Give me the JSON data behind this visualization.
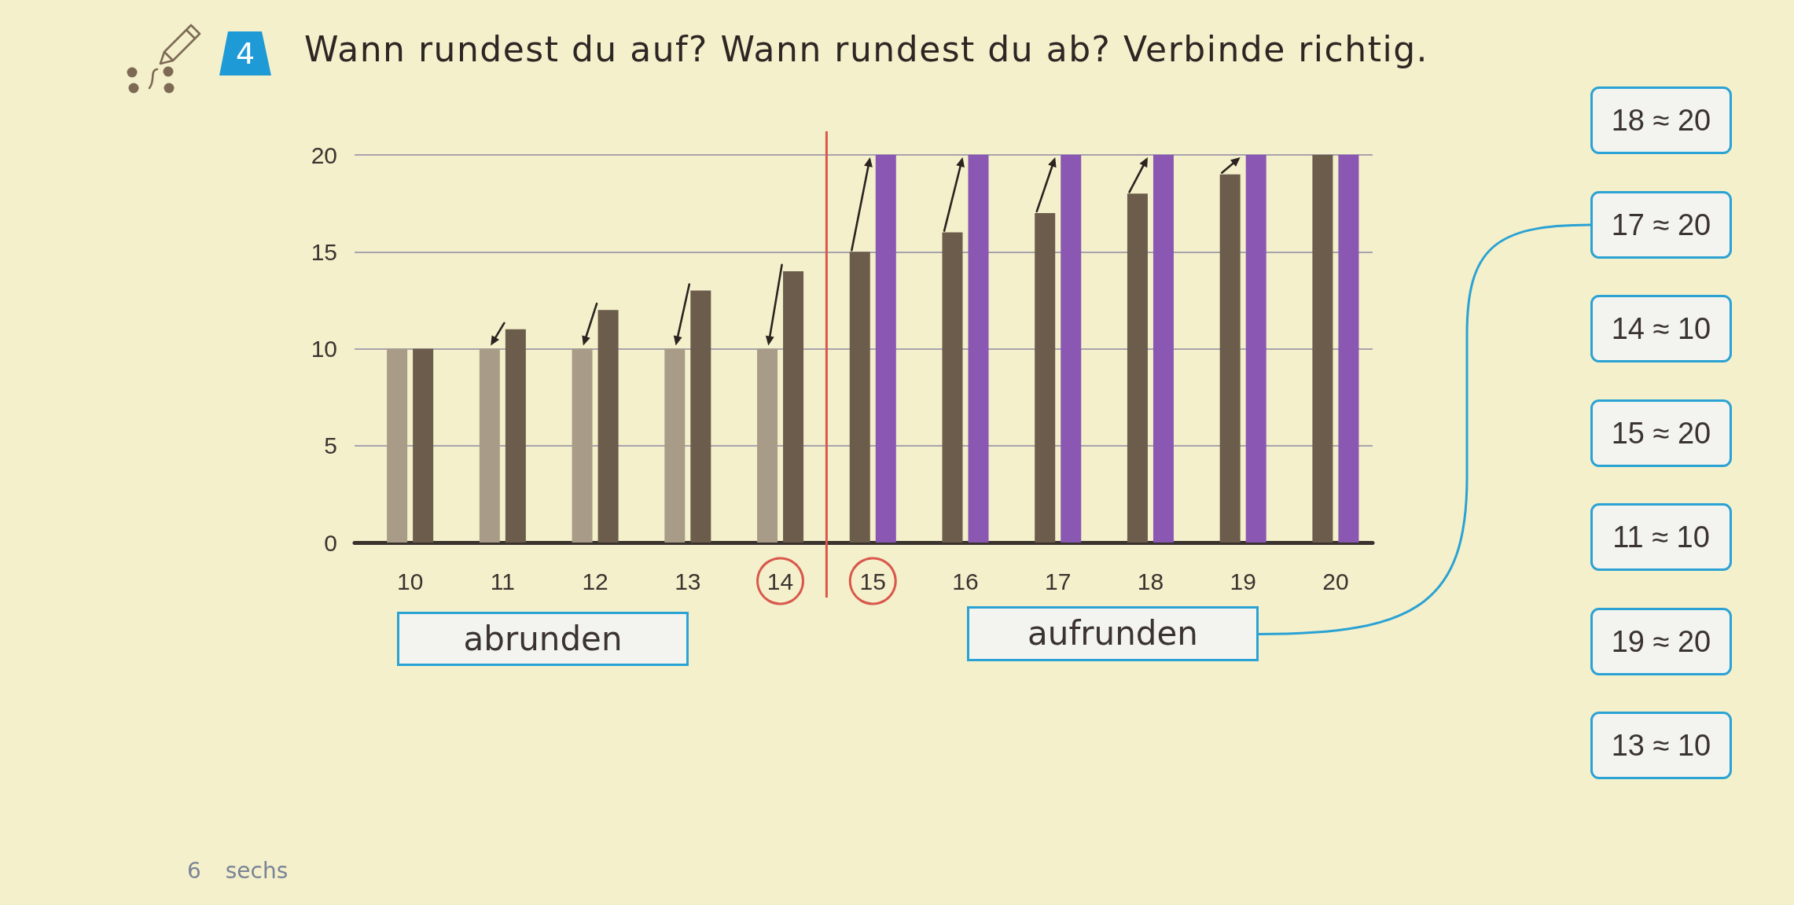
{
  "chart_data": {
    "type": "bar",
    "title": "Wann rundest du auf? Wann rundest du ab? Verbinde richtig.",
    "x": [
      10,
      11,
      12,
      13,
      14,
      15,
      16,
      17,
      18,
      19,
      20
    ],
    "series": [
      {
        "colors": [
          "#a89c88",
          "#a89c88",
          "#a89c88",
          "#a89c88",
          "#a89c88",
          "#6b5c4c",
          "#6b5c4c",
          "#6b5c4c",
          "#6b5c4c",
          "#6b5c4c",
          "#6b5c4c"
        ],
        "values": [
          10,
          10,
          10,
          10,
          10,
          15,
          16,
          17,
          18,
          19,
          20
        ]
      },
      {
        "colors": [
          "#6b5c4c",
          "#6b5c4c",
          "#6b5c4c",
          "#6b5c4c",
          "#6b5c4c",
          "#8a57b2",
          "#8a57b2",
          "#8a57b2",
          "#8a57b2",
          "#8a57b2",
          "#8a57b2"
        ],
        "values": [
          10,
          11,
          12,
          13,
          14,
          20,
          20,
          20,
          20,
          20,
          20
        ]
      }
    ],
    "xlim": [
      9.4,
      20.4
    ],
    "xticks": [
      10,
      11,
      12,
      13,
      14,
      15,
      16,
      17,
      18,
      19,
      20
    ],
    "ylim": [
      0,
      20
    ],
    "yticks": [
      0,
      5,
      10,
      15,
      20
    ],
    "grid": "y",
    "ref_lines": [
      {
        "axis": "x",
        "value": 14.5,
        "color": "#d9584c"
      }
    ],
    "annotations": [
      "4",
      "abrunden",
      "aufrunden",
      "18 ≈ 20",
      "17 ≈ 20",
      "14 ≈ 10",
      "15 ≈ 20",
      "11 ≈ 10",
      "19 ≈ 20",
      "13 ≈ 10",
      "6 sechs"
    ]
  }
}
